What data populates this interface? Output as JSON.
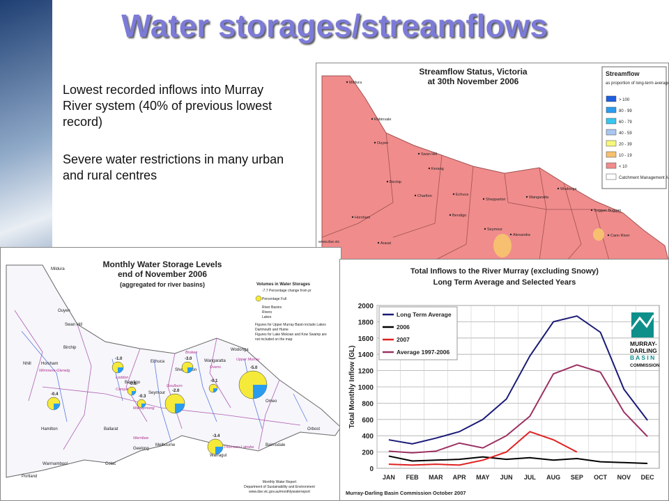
{
  "slide": {
    "title": "Water storages/streamflows",
    "bullets": [
      "Lowest recorded inflows into Murray River system (40% of previous lowest record)",
      "Severe water restrictions in many urban and rural centres"
    ]
  },
  "streamflow_map": {
    "title_lines": [
      "Streamflow Status, Victoria",
      "at 30th November 2006"
    ],
    "legend_title": "Streamflow",
    "legend_subtitle": "as proportion of long-term average for November (%)",
    "legend_items": [
      {
        "label": "> 100",
        "color": "#1e5fe0"
      },
      {
        "label": "80 - 99",
        "color": "#2a9cf0"
      },
      {
        "label": "60 - 79",
        "color": "#36c6f0"
      },
      {
        "label": "40 - 59",
        "color": "#a9c6ee"
      },
      {
        "label": "20 - 39",
        "color": "#f7f77a"
      },
      {
        "label": "10 - 19",
        "color": "#f6c070"
      },
      {
        "label": "< 10",
        "color": "#f08c8c"
      },
      {
        "label": "Catchment Management Authority",
        "color": "#ffffff"
      }
    ],
    "places": [
      "Mildura",
      "Robinvale",
      "Ouyen",
      "Swan Hill",
      "Kerang",
      "Birchip",
      "Charlton",
      "Echuca",
      "Shepparton",
      "Wangaratta",
      "Wodonga",
      "Bendigo",
      "Horsham",
      "Seymour",
      "Alexandra",
      "Ararat",
      "Hamilton",
      "Ballarat",
      "Melbourne",
      "Bairnsdale",
      "Suggan Buggan",
      "Cann River"
    ],
    "source": "www.dse.vic"
  },
  "storage_map": {
    "title_lines": [
      "Monthly Water Storage Levels",
      "end of November 2006",
      "(aggregated for river basins)"
    ],
    "legend_title": "Volumes in Water Storages",
    "legend_items": [
      "-7.7  Percentage change from pr",
      "Percentage Full",
      "River Basins",
      "Rivers",
      "Lakes"
    ],
    "notes": [
      "Figures for Upper Murray Basin include Lakes",
      "Dartmouth and Hume",
      "Figures for Lake Mokoan and Kow Swamp are",
      "not included on the map"
    ],
    "places": [
      "Mildura",
      "Ouyen",
      "Swan Hill",
      "Birchip",
      "Nhill",
      "Horsham",
      "Echuca",
      "Shepparton",
      "Wangaratta",
      "Wodonga",
      "Bendigo",
      "Seymour",
      "Omeo",
      "Hamilton",
      "Ballarat",
      "Melbourne",
      "Bairnsdale",
      "Orbost",
      "Warrnambool",
      "Portland",
      "Colac",
      "Geelong",
      "Warragul"
    ],
    "basins": [
      "Loddon",
      "Campaspe",
      "Goulburn",
      "Broken",
      "Ovens",
      "Upper Murray",
      "Wimmera-Glenelg",
      "Maribyrnong",
      "Werribee",
      "Thomson-Latrobe"
    ],
    "changes": [
      "-1.0",
      "-0.6",
      "-0.3",
      "-3.0",
      "-0.1",
      "-2.0",
      "-5.0",
      "-0.4",
      "-3.4"
    ],
    "footer": [
      "Monthly Water Report",
      "Department of Sustainability and Environment",
      "www.dse.vic.gov.au/monthlywaterreport"
    ]
  },
  "chart_data": {
    "type": "line",
    "title": "Total Inflows to the River Murray (excluding Snowy)",
    "subtitle": "Long Term Average and Selected Years",
    "y_label": "Total Monthly Inflow (GL)",
    "source": "Murray-Darling Basin Commission October 2007",
    "logo": [
      "MURRAY-",
      "DARLING",
      "B A S I N",
      "COMMISSION"
    ],
    "categories": [
      "JAN",
      "FEB",
      "MAR",
      "APR",
      "MAY",
      "JUN",
      "JUL",
      "AUG",
      "SEP",
      "OCT",
      "NOV",
      "DEC"
    ],
    "series": [
      {
        "name": "Long Term Average",
        "color": "#1a1a78",
        "values": [
          350,
          300,
          370,
          450,
          600,
          850,
          1380,
          1800,
          1870,
          1670,
          970,
          590
        ]
      },
      {
        "name": "2006",
        "color": "#000000",
        "values": [
          150,
          90,
          100,
          110,
          140,
          110,
          130,
          100,
          120,
          80,
          70,
          60
        ]
      },
      {
        "name": "2007",
        "color": "#e02020",
        "values": [
          50,
          40,
          50,
          40,
          100,
          200,
          450,
          350,
          200,
          null,
          null,
          null
        ]
      },
      {
        "name": "Average 1997-2006",
        "color": "#9b3062",
        "values": [
          210,
          190,
          210,
          310,
          250,
          400,
          640,
          1160,
          1270,
          1180,
          690,
          390
        ]
      }
    ],
    "ylim": [
      0,
      2000
    ],
    "yticks": [
      0,
      200,
      400,
      600,
      800,
      1000,
      1200,
      1400,
      1600,
      1800,
      2000
    ],
    "grid": true
  }
}
